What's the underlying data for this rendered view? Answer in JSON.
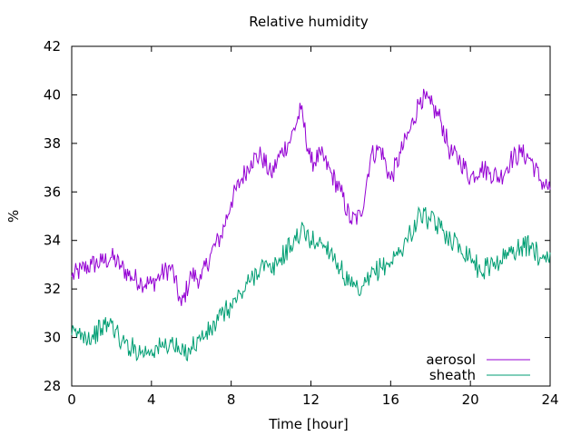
{
  "chart_data": {
    "type": "line",
    "title": "Relative humidity",
    "xlabel": "Time [hour]",
    "ylabel": "%",
    "xlim": [
      0,
      24
    ],
    "ylim": [
      28,
      42
    ],
    "xticks": [
      "0",
      "4",
      "8",
      "12",
      "16",
      "20",
      "24"
    ],
    "yticks": [
      "28",
      "30",
      "32",
      "34",
      "36",
      "38",
      "40",
      "42"
    ],
    "grid": false,
    "legend": "bottom-right",
    "x": [
      0,
      0.5,
      1,
      1.5,
      2,
      2.5,
      3,
      3.5,
      4,
      4.5,
      5,
      5.5,
      6,
      6.5,
      7,
      7.5,
      8,
      8.5,
      9,
      9.5,
      10,
      10.5,
      11,
      11.5,
      12,
      12.5,
      13,
      13.5,
      14,
      14.5,
      15,
      15.5,
      16,
      16.5,
      17,
      17.5,
      18,
      18.5,
      19,
      19.5,
      20,
      20.5,
      21,
      21.5,
      22,
      22.5,
      23,
      23.5,
      24
    ],
    "series": [
      {
        "name": "aerosol",
        "color": "#9400d3",
        "values": [
          32.5,
          32.8,
          33.0,
          33.1,
          33.3,
          32.9,
          32.5,
          32.3,
          32.2,
          32.6,
          32.9,
          31.3,
          32.6,
          32.4,
          33.5,
          34.2,
          35.6,
          36.5,
          37.3,
          37.5,
          36.7,
          37.6,
          38.2,
          39.4,
          37.2,
          37.5,
          36.8,
          36.0,
          34.8,
          35.0,
          37.5,
          37.8,
          36.5,
          37.6,
          38.6,
          39.9,
          39.6,
          39.0,
          37.6,
          37.3,
          36.6,
          37.0,
          36.8,
          36.6,
          37.3,
          37.6,
          37.4,
          36.5,
          36.1
        ]
      },
      {
        "name": "sheath",
        "color": "#009e73",
        "values": [
          30.1,
          30.2,
          30.0,
          30.4,
          30.6,
          29.8,
          29.6,
          29.4,
          29.5,
          29.6,
          29.8,
          29.3,
          29.6,
          30.0,
          30.3,
          30.9,
          31.3,
          31.8,
          32.4,
          33.0,
          32.7,
          33.3,
          33.8,
          34.4,
          34.0,
          33.9,
          33.6,
          32.8,
          32.1,
          31.8,
          32.5,
          32.9,
          33.1,
          33.6,
          34.3,
          35.1,
          34.8,
          34.5,
          34.1,
          33.7,
          33.4,
          32.7,
          33.0,
          33.2,
          33.5,
          33.7,
          33.8,
          33.3,
          33.5
        ]
      }
    ]
  }
}
